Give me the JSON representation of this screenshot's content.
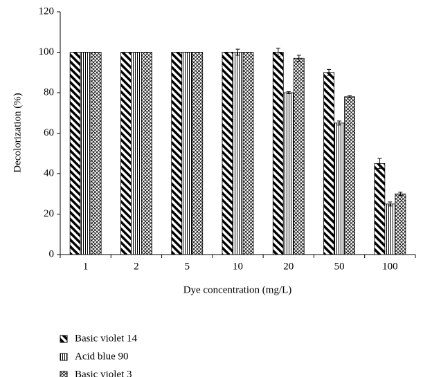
{
  "chart_data": {
    "type": "bar",
    "xlabel": "Dye concentration (mg/L)",
    "ylabel": "Decolorization (%)",
    "categories": [
      "1",
      "2",
      "5",
      "10",
      "20",
      "50",
      "100"
    ],
    "series": [
      {
        "name": "Basic violet 14",
        "color": "#000000",
        "pattern": "diagonal",
        "values": [
          100,
          100,
          100,
          100,
          100,
          90,
          45
        ],
        "errors": [
          0,
          0,
          0,
          0,
          2,
          1.5,
          2.5
        ]
      },
      {
        "name": "Acid blue 90",
        "color": "#000000",
        "pattern": "vertical",
        "values": [
          100,
          100,
          100,
          100,
          80,
          65,
          25
        ],
        "errors": [
          0,
          0,
          0,
          1.5,
          0.5,
          1,
          1
        ]
      },
      {
        "name": "Basic violet 3",
        "color": "#000000",
        "pattern": "crosshatch",
        "values": [
          100,
          100,
          100,
          100,
          97,
          78,
          30
        ],
        "errors": [
          0,
          0,
          0,
          0,
          1.5,
          0.5,
          0.8
        ]
      }
    ],
    "ylim": [
      0,
      120
    ],
    "yticks": [
      0,
      20,
      40,
      60,
      80,
      100,
      120
    ],
    "legend": "bottom-left"
  }
}
